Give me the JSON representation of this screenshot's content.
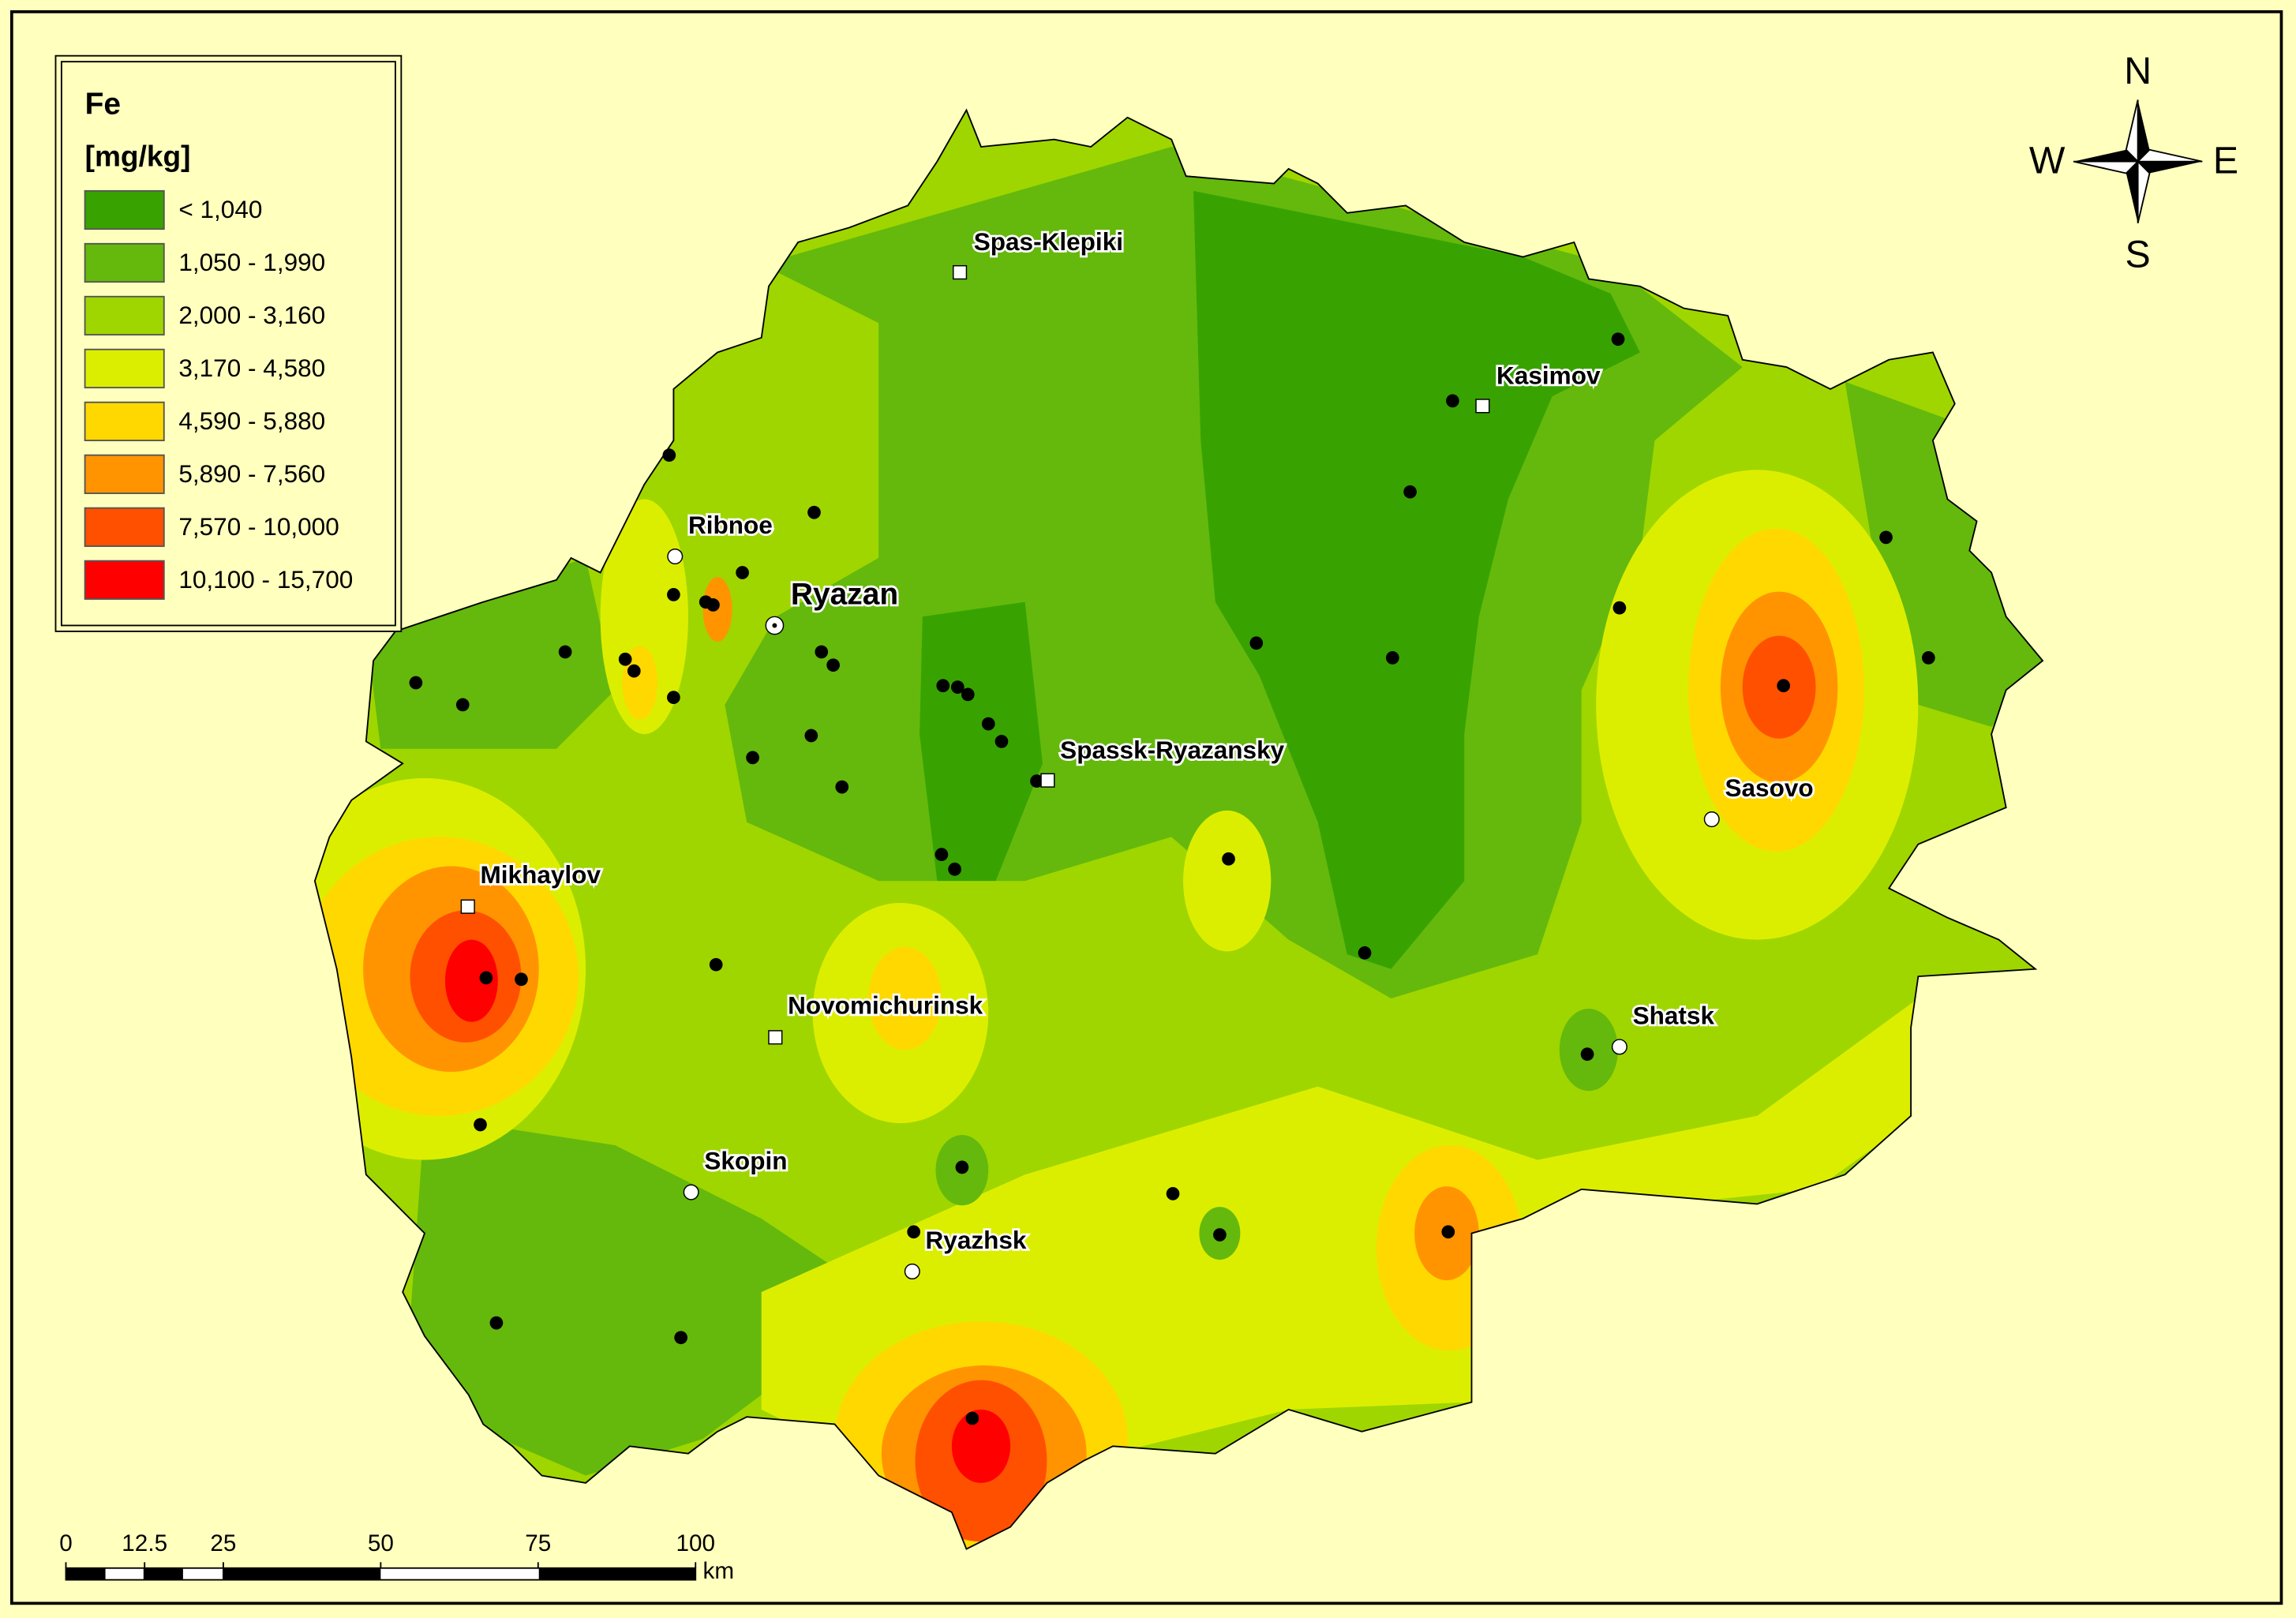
{
  "legend": {
    "title": "Fe",
    "unit": "[mg/kg]",
    "classes": [
      {
        "label": "< 1,040",
        "color": "#38a300"
      },
      {
        "label": "1,050 - 1,990",
        "color": "#64b90c"
      },
      {
        "label": "2,000 - 3,160",
        "color": "#9fd600"
      },
      {
        "label": "3,170 - 4,580",
        "color": "#dcee00"
      },
      {
        "label": "4,590 - 5,880",
        "color": "#ffd800"
      },
      {
        "label": "5,890 - 7,560",
        "color": "#ff9400"
      },
      {
        "label": "7,570 - 10,000",
        "color": "#ff5000"
      },
      {
        "label": "10,100 - 15,700",
        "color": "#ff0000"
      }
    ]
  },
  "cities": [
    "Spas-Klepiki",
    "Kasimov",
    "Ribnoe",
    "Ryazan",
    "Spassk-Ryazansky",
    "Sasovo",
    "Mikhaylov",
    "Novomichurinsk",
    "Shatsk",
    "Skopin",
    "Ryazhsk"
  ],
  "compass": {
    "north": "N",
    "south": "S",
    "west": "W",
    "east": "E"
  },
  "scale_bar": {
    "ticks": [
      0,
      12.5,
      25,
      50,
      75,
      100
    ],
    "unit": "km"
  }
}
